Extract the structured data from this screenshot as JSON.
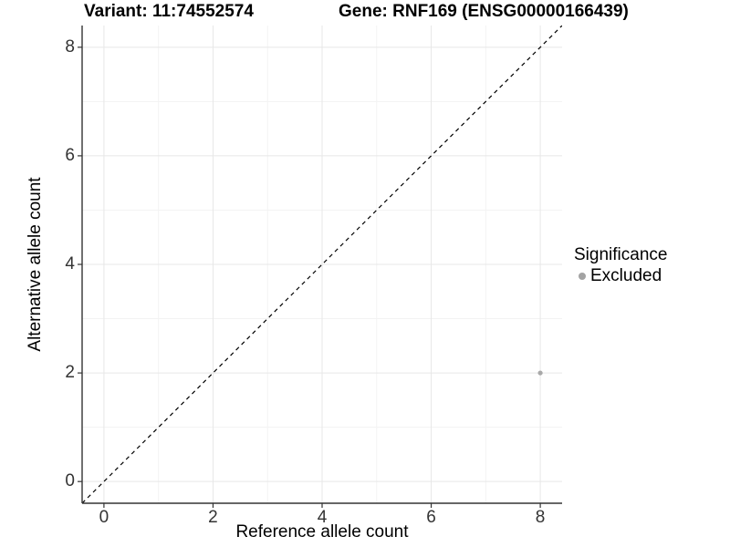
{
  "chart_data": {
    "type": "scatter",
    "title_left": "Variant: 11:74552574",
    "title_right": "Gene: RNF169 (ENSG00000166439)",
    "xlabel": "Reference allele count",
    "ylabel": "Alternative allele count",
    "xlim": [
      -0.4,
      8.4
    ],
    "ylim": [
      -0.4,
      8.4
    ],
    "xticks": [
      0,
      2,
      4,
      6,
      8
    ],
    "yticks": [
      0,
      2,
      4,
      6,
      8
    ],
    "xminor": [
      1,
      3,
      5,
      7
    ],
    "yminor": [
      1,
      3,
      5,
      7
    ],
    "grid": true,
    "identity_line": {
      "type": "abline",
      "slope": 1,
      "intercept": 0,
      "style": "dashed",
      "color": "#000000"
    },
    "series": [
      {
        "name": "Excluded",
        "color": "#a9a9a9",
        "points": [
          {
            "x": 8,
            "y": 2
          }
        ]
      }
    ],
    "legend": {
      "title": "Significance",
      "position": "right",
      "items": [
        {
          "label": "Excluded",
          "color": "#a3a3a3"
        }
      ]
    },
    "style_colors": {
      "background": "#ffffff",
      "grid_major": "#e7e7e7",
      "grid_minor": "#f3f3f3",
      "axis_line": "#333333",
      "tick_text": "#333333",
      "point": "#a9a9a9"
    }
  }
}
